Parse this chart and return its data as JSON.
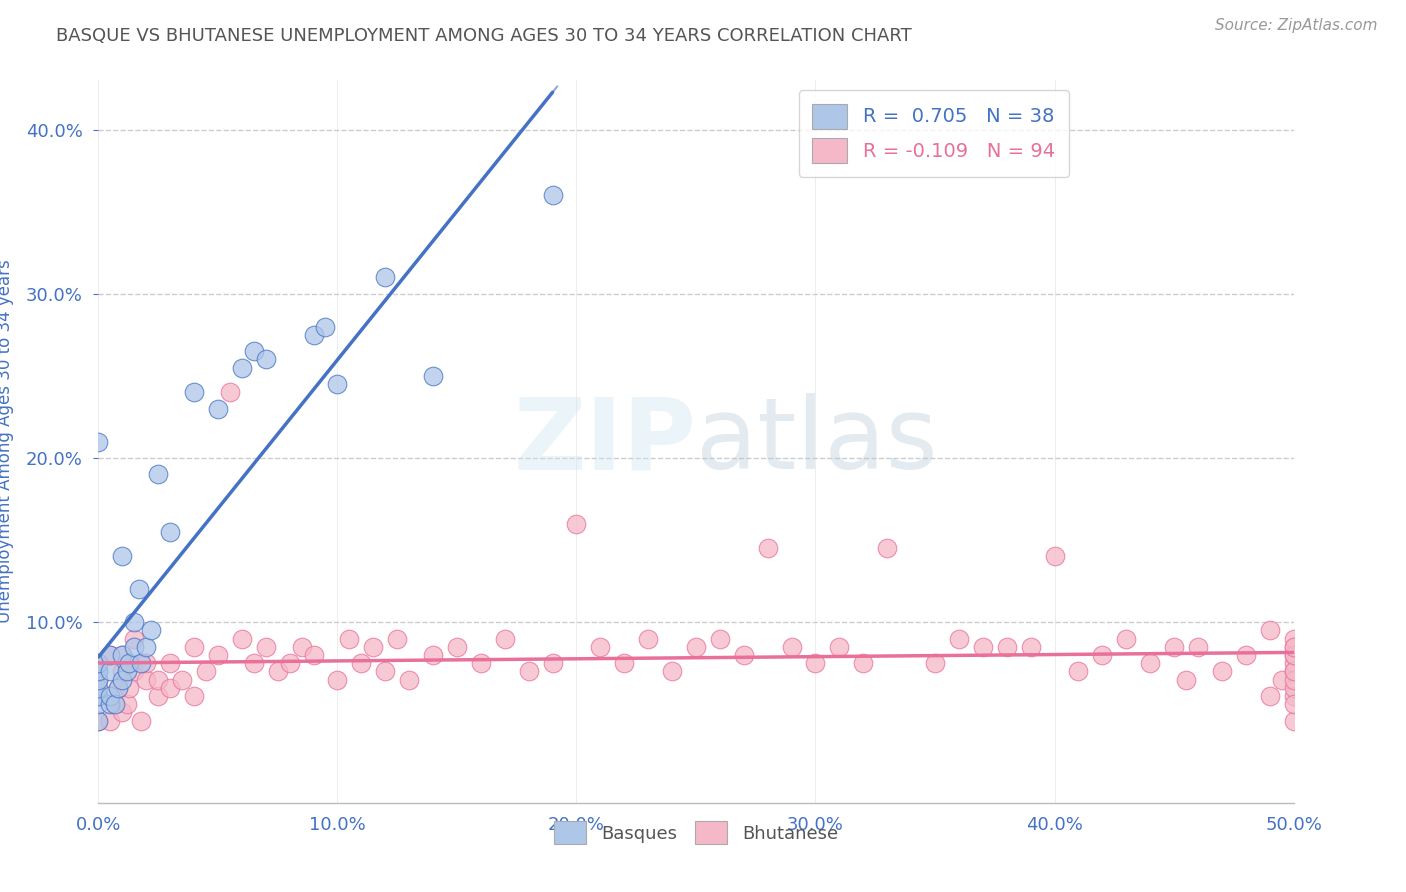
{
  "title": "BASQUE VS BHUTANESE UNEMPLOYMENT AMONG AGES 30 TO 34 YEARS CORRELATION CHART",
  "source": "Source: ZipAtlas.com",
  "ylabel": "Unemployment Among Ages 30 to 34 years",
  "xlim": [
    0.0,
    0.5
  ],
  "ylim": [
    -0.01,
    0.43
  ],
  "xticks": [
    0.0,
    0.1,
    0.2,
    0.3,
    0.4,
    0.5
  ],
  "yticks": [
    0.1,
    0.2,
    0.3,
    0.4
  ],
  "basque_R": 0.705,
  "basque_N": 38,
  "bhutanese_R": -0.109,
  "bhutanese_N": 94,
  "basque_color": "#aec6e8",
  "bhutanese_color": "#f5b8c8",
  "basque_line_color": "#4472c4",
  "bhutanese_line_color": "#e8709a",
  "background_color": "#ffffff",
  "grid_color": "#cccccc",
  "title_color": "#555555",
  "tick_label_color": "#4472c4",
  "basque_x": [
    0.0,
    0.0,
    0.0,
    0.0,
    0.0,
    0.0,
    0.0,
    0.0,
    0.005,
    0.005,
    0.005,
    0.005,
    0.007,
    0.008,
    0.01,
    0.01,
    0.01,
    0.012,
    0.013,
    0.015,
    0.015,
    0.017,
    0.018,
    0.02,
    0.022,
    0.025,
    0.03,
    0.04,
    0.05,
    0.06,
    0.065,
    0.07,
    0.09,
    0.095,
    0.1,
    0.12,
    0.14,
    0.19
  ],
  "basque_y": [
    0.04,
    0.05,
    0.055,
    0.06,
    0.065,
    0.07,
    0.075,
    0.21,
    0.05,
    0.055,
    0.07,
    0.08,
    0.05,
    0.06,
    0.065,
    0.08,
    0.14,
    0.07,
    0.075,
    0.085,
    0.1,
    0.12,
    0.075,
    0.085,
    0.095,
    0.19,
    0.155,
    0.24,
    0.23,
    0.255,
    0.265,
    0.26,
    0.275,
    0.28,
    0.245,
    0.31,
    0.25,
    0.36
  ],
  "bhutanese_x": [
    0.0,
    0.0,
    0.0,
    0.0,
    0.0,
    0.005,
    0.005,
    0.007,
    0.008,
    0.01,
    0.01,
    0.01,
    0.012,
    0.013,
    0.015,
    0.015,
    0.018,
    0.02,
    0.02,
    0.025,
    0.025,
    0.03,
    0.03,
    0.035,
    0.04,
    0.04,
    0.045,
    0.05,
    0.055,
    0.06,
    0.065,
    0.07,
    0.075,
    0.08,
    0.085,
    0.09,
    0.1,
    0.105,
    0.11,
    0.115,
    0.12,
    0.125,
    0.13,
    0.14,
    0.15,
    0.16,
    0.17,
    0.18,
    0.19,
    0.2,
    0.21,
    0.22,
    0.23,
    0.24,
    0.25,
    0.26,
    0.27,
    0.28,
    0.29,
    0.3,
    0.31,
    0.32,
    0.33,
    0.35,
    0.36,
    0.37,
    0.38,
    0.39,
    0.4,
    0.41,
    0.42,
    0.43,
    0.44,
    0.45,
    0.455,
    0.46,
    0.47,
    0.48,
    0.49,
    0.49,
    0.495,
    0.5,
    0.5,
    0.5,
    0.5,
    0.5,
    0.5,
    0.5,
    0.5,
    0.5,
    0.5,
    0.5,
    0.5,
    0.5
  ],
  "bhutanese_y": [
    0.04,
    0.055,
    0.065,
    0.07,
    0.075,
    0.04,
    0.08,
    0.05,
    0.06,
    0.045,
    0.07,
    0.08,
    0.05,
    0.06,
    0.07,
    0.09,
    0.04,
    0.065,
    0.075,
    0.055,
    0.065,
    0.06,
    0.075,
    0.065,
    0.055,
    0.085,
    0.07,
    0.08,
    0.24,
    0.09,
    0.075,
    0.085,
    0.07,
    0.075,
    0.085,
    0.08,
    0.065,
    0.09,
    0.075,
    0.085,
    0.07,
    0.09,
    0.065,
    0.08,
    0.085,
    0.075,
    0.09,
    0.07,
    0.075,
    0.16,
    0.085,
    0.075,
    0.09,
    0.07,
    0.085,
    0.09,
    0.08,
    0.145,
    0.085,
    0.075,
    0.085,
    0.075,
    0.145,
    0.075,
    0.09,
    0.085,
    0.085,
    0.085,
    0.14,
    0.07,
    0.08,
    0.09,
    0.075,
    0.085,
    0.065,
    0.085,
    0.07,
    0.08,
    0.055,
    0.095,
    0.065,
    0.04,
    0.055,
    0.06,
    0.07,
    0.075,
    0.08,
    0.085,
    0.09,
    0.05,
    0.065,
    0.07,
    0.08,
    0.085
  ]
}
